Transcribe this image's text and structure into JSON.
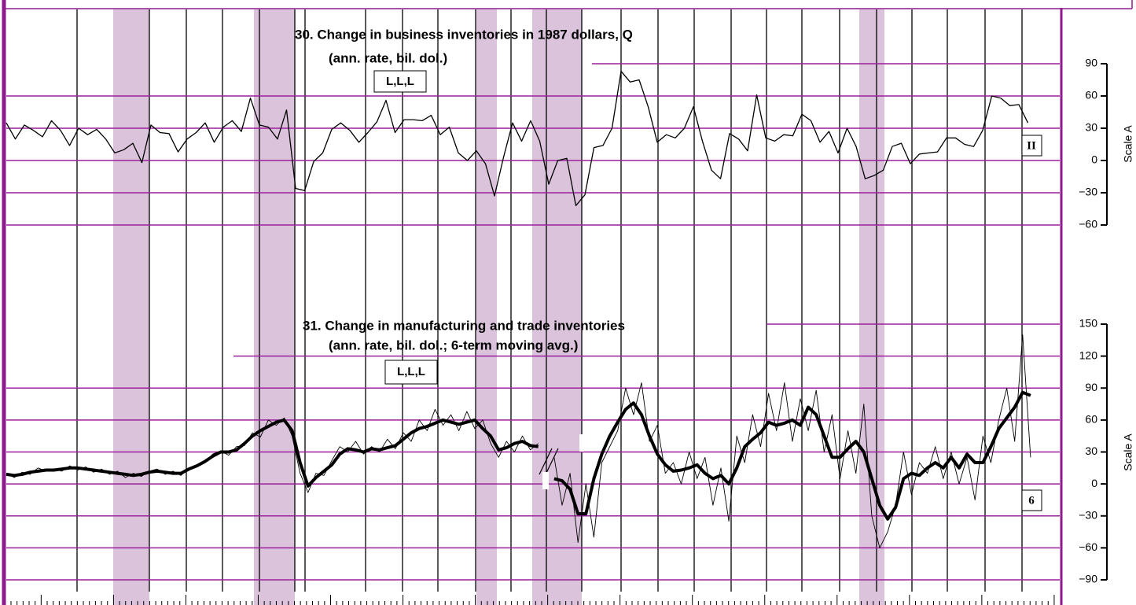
{
  "chart_data": [
    {
      "type": "line",
      "title": "30. Change in business inventories in 1987 dollars, Q",
      "subtitle": "(ann. rate, bil. dol.)",
      "timing_code": "L,L,L",
      "series_code": "II",
      "y_label": "Scale A",
      "ylim": [
        -60,
        90
      ],
      "yticks": [
        90,
        60,
        30,
        0,
        {
          "value": -30,
          "label": "−30"
        },
        {
          "value": -60,
          "label": "−60"
        }
      ],
      "grid": true,
      "grid_color": "#9b1f9b",
      "series": [
        {
          "color": "#000000",
          "width": 1.3,
          "values": [
            35,
            20,
            33,
            28,
            22,
            37,
            28,
            14,
            30,
            24,
            29,
            20,
            7,
            10,
            16,
            -2,
            33,
            26,
            25,
            8,
            20,
            26,
            35,
            17,
            31,
            37,
            27,
            58,
            33,
            31,
            20,
            47,
            -26,
            -28,
            -1,
            7,
            29,
            35,
            28,
            17,
            26,
            36,
            56,
            26,
            38,
            38,
            37,
            42,
            24,
            31,
            7,
            0,
            9,
            -3,
            -33,
            3,
            35,
            18,
            37,
            18,
            -22,
            0,
            2,
            -42,
            -32,
            12,
            14,
            30,
            83,
            73,
            75,
            50,
            17,
            24,
            21,
            30,
            50,
            18,
            -9,
            -17,
            25,
            20,
            9,
            61,
            21,
            18,
            24,
            23,
            43,
            37,
            17,
            27,
            7,
            30,
            13,
            -17,
            -14,
            -9,
            13,
            16,
            -3,
            6,
            7,
            8,
            21,
            21,
            15,
            13,
            28,
            60,
            58,
            51,
            52,
            35
          ]
        }
      ]
    },
    {
      "type": "line",
      "title": "31. Change in manufacturing and trade inventories",
      "subtitle": "(ann. rate, bil. dol.; 6-term moving avg.)",
      "timing_code": "L,L,L",
      "series_code": "6",
      "y_label": "Scale A",
      "ylim": [
        -90,
        150
      ],
      "yticks": [
        150,
        120,
        90,
        60,
        30,
        0,
        {
          "value": -30,
          "label": "−30"
        },
        {
          "value": -60,
          "label": "−60"
        },
        {
          "value": -90,
          "label": "−90"
        }
      ],
      "grid": true,
      "grid_color": "#9b1f9b",
      "series": [
        {
          "color": "#000000",
          "width": 0.9,
          "values": [
            10,
            6,
            11,
            9,
            15,
            12,
            14,
            12,
            17,
            13,
            16,
            11,
            14,
            9,
            12,
            6,
            10,
            7,
            12,
            14,
            9,
            12,
            8,
            15,
            18,
            20,
            28,
            31,
            27,
            35,
            36,
            48,
            44,
            60,
            55,
            62,
            45,
            10,
            -8,
            10,
            8,
            22,
            35,
            30,
            40,
            28,
            35,
            30,
            42,
            33,
            48,
            40,
            60,
            50,
            70,
            55,
            65,
            50,
            68,
            52,
            60,
            38,
            25,
            40,
            30,
            45,
            32,
            38,
            null,
            25,
            -20,
            10,
            -55,
            0,
            -50,
            20,
            35,
            50,
            90,
            65,
            95,
            40,
            55,
            10,
            20,
            0,
            30,
            5,
            25,
            -20,
            15,
            -35,
            45,
            20,
            65,
            35,
            85,
            50,
            95,
            40,
            80,
            50,
            88,
            30,
            65,
            5,
            50,
            10,
            75,
            -30,
            -60,
            -45,
            -20,
            30,
            -10,
            20,
            10,
            35,
            5,
            30,
            0,
            25,
            -15,
            45,
            20,
            60,
            90,
            40,
            140,
            25
          ]
        },
        {
          "color": "#000000",
          "width": 4,
          "values": [
            9,
            8,
            9,
            11,
            12,
            13,
            13,
            14,
            15,
            15,
            14,
            13,
            12,
            11,
            10,
            9,
            8,
            9,
            11,
            12,
            11,
            10,
            10,
            14,
            17,
            21,
            26,
            30,
            30,
            32,
            38,
            45,
            50,
            54,
            58,
            60,
            50,
            20,
            -2,
            6,
            12,
            18,
            28,
            33,
            32,
            30,
            33,
            32,
            34,
            36,
            42,
            48,
            52,
            54,
            57,
            60,
            58,
            56,
            58,
            60,
            52,
            45,
            32,
            34,
            38,
            40,
            36,
            35,
            null,
            5,
            3,
            -5,
            -28,
            -28,
            5,
            28,
            45,
            58,
            70,
            76,
            65,
            45,
            28,
            18,
            12,
            13,
            15,
            18,
            10,
            5,
            8,
            0,
            15,
            35,
            42,
            48,
            58,
            55,
            57,
            60,
            55,
            72,
            65,
            45,
            25,
            25,
            33,
            40,
            30,
            5,
            -20,
            -33,
            -22,
            5,
            10,
            8,
            15,
            20,
            15,
            25,
            15,
            28,
            20,
            20,
            35,
            52,
            62,
            72,
            86,
            83
          ]
        }
      ]
    }
  ]
}
